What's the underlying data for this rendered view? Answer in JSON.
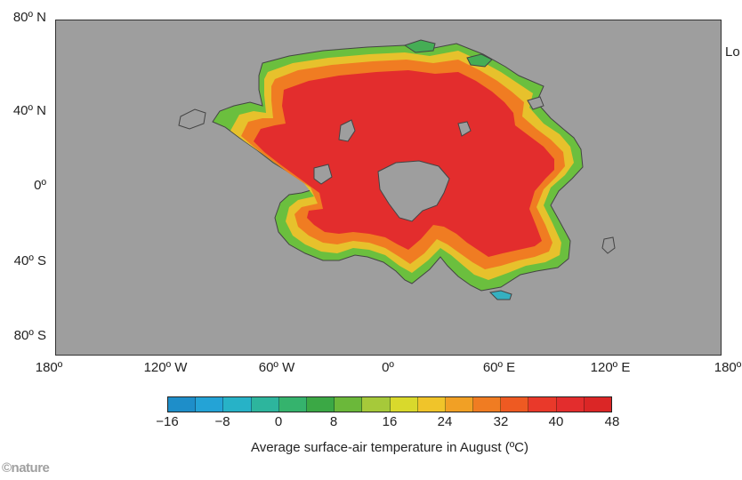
{
  "map": {
    "lat_labels": [
      "80º N",
      "40º N",
      "0º",
      "40º S",
      "80º S"
    ],
    "lon_labels": [
      "180º",
      "120º W",
      "60º W",
      "0º",
      "60º E",
      "120º E",
      "180º"
    ],
    "edge_label": "Lo",
    "ocean_color": "#9e9e9e"
  },
  "colorbar": {
    "title": "Average surface-air temperature in August (ºC)",
    "tick_labels": [
      "−16",
      "−8",
      "0",
      "8",
      "16",
      "24",
      "32",
      "40",
      "48"
    ],
    "range": [
      -16,
      48
    ],
    "step": 4,
    "colors": [
      "#1e8ec9",
      "#24a3d6",
      "#27b2c7",
      "#2db59d",
      "#35b36d",
      "#3ba845",
      "#6bb83a",
      "#a6c93a",
      "#d9d92c",
      "#f0c42a",
      "#f1a025",
      "#f07c22",
      "#ee5a22",
      "#e9392a",
      "#e32d2d",
      "#db2626"
    ]
  },
  "credit": "©nature"
}
